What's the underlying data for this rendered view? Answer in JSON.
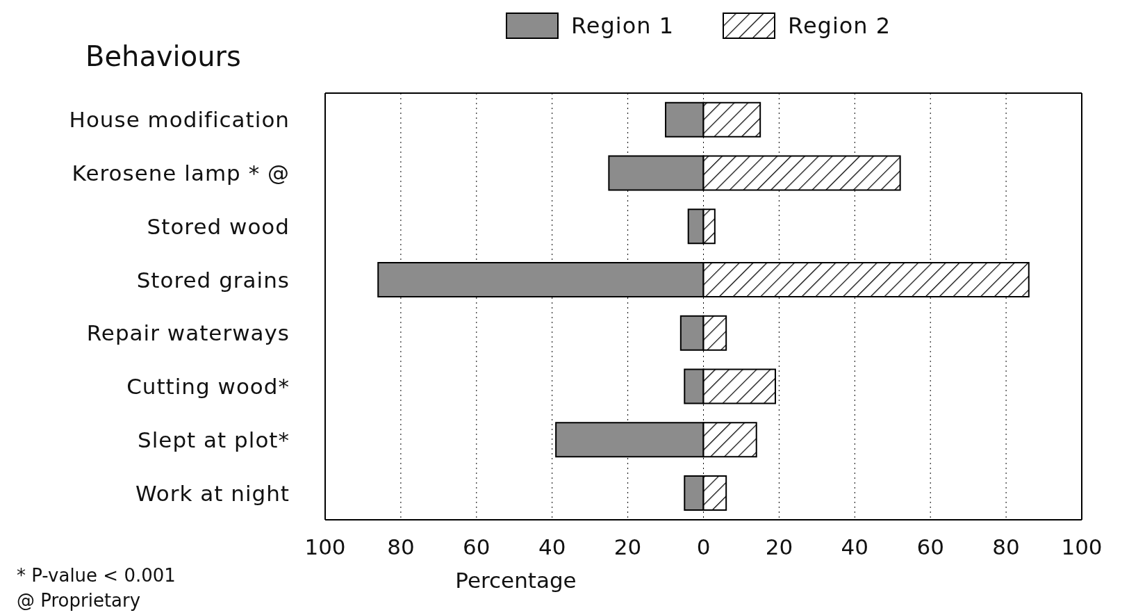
{
  "chart_data": {
    "type": "bar",
    "orientation": "horizontal",
    "ylabel": "Behaviours",
    "xlabel": "Percentage",
    "categories": [
      "House modification",
      "Kerosene lamp * @",
      "Stored wood",
      "Stored grains",
      "Repair waterways",
      "Cutting wood*",
      "Slept at plot*",
      "Work at night"
    ],
    "series": [
      {
        "name": "Region 1",
        "color": "#8c8c8c",
        "values": [
          -10,
          -25,
          -4,
          -86,
          -6,
          -5,
          -39,
          -5
        ]
      },
      {
        "name": "Region 2",
        "color": "#000000",
        "values": [
          15,
          52,
          3,
          86,
          6,
          19,
          14,
          6
        ]
      }
    ],
    "xlim": [
      -100,
      100
    ],
    "xticks": [
      {
        "value": -100,
        "label": "100"
      },
      {
        "value": -80,
        "label": "80"
      },
      {
        "value": -60,
        "label": "60"
      },
      {
        "value": -40,
        "label": "40"
      },
      {
        "value": -20,
        "label": "20"
      },
      0,
      20,
      40,
      60,
      80,
      100
    ],
    "stacked": true,
    "grid": "x",
    "legend": "top",
    "annotations": [
      "* P-value < 0.001",
      "@ Proprietary"
    ]
  }
}
